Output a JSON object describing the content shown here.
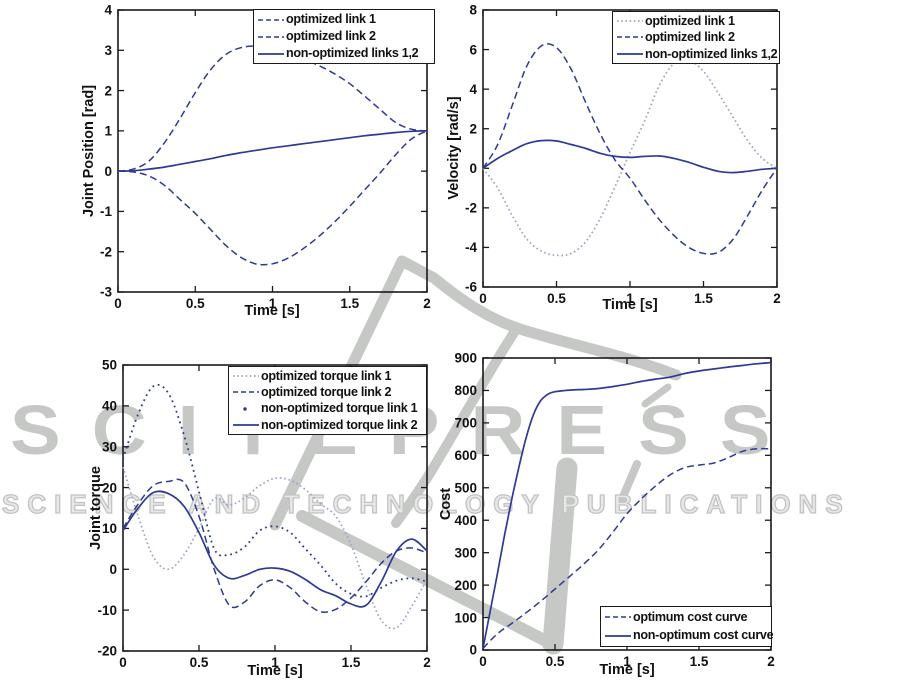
{
  "watermark": {
    "line1": "SCITEPRESS",
    "line2": "SCIENCE AND TECHNOLOGY PUBLICATIONS",
    "gray": "#c6c8c6"
  },
  "colors": {
    "curve_dark": "#2e3a94",
    "curve_light": "#99a2c9",
    "axis": "#1a1a1a",
    "text": "#111111"
  },
  "chart_data": [
    {
      "type": "line",
      "title": "",
      "xlabel": "Time [s]",
      "ylabel": "Joint Position [rad]",
      "xlim": [
        0,
        2
      ],
      "ylim": [
        -3,
        4
      ],
      "xticks": [
        0,
        0.5,
        1,
        1.5,
        2
      ],
      "yticks": [
        -3,
        -2,
        -1,
        0,
        1,
        2,
        3,
        4
      ],
      "grid": false,
      "legend_position": "top-right",
      "series": [
        {
          "name": "optimized link 1",
          "style": "dashed",
          "x": [
            0,
            0.1,
            0.2,
            0.3,
            0.4,
            0.5,
            0.6,
            0.7,
            0.8,
            0.9,
            1.0,
            1.1,
            1.2,
            1.3,
            1.4,
            1.5,
            1.6,
            1.7,
            1.8,
            1.9,
            2.0
          ],
          "y": [
            0,
            -0.02,
            -0.12,
            -0.35,
            -0.7,
            -1.05,
            -1.45,
            -1.85,
            -2.15,
            -2.31,
            -2.3,
            -2.16,
            -1.92,
            -1.62,
            -1.27,
            -0.87,
            -0.45,
            -0.03,
            0.42,
            0.8,
            1.0
          ]
        },
        {
          "name": "optimized link 2",
          "style": "dashed",
          "x": [
            0,
            0.1,
            0.2,
            0.3,
            0.4,
            0.5,
            0.6,
            0.7,
            0.8,
            0.9,
            1.0,
            1.1,
            1.2,
            1.3,
            1.4,
            1.5,
            1.6,
            1.7,
            1.8,
            1.9,
            2.0
          ],
          "y": [
            0,
            0.05,
            0.25,
            0.7,
            1.3,
            1.95,
            2.52,
            2.9,
            3.07,
            3.1,
            3.03,
            2.92,
            2.78,
            2.62,
            2.42,
            2.17,
            1.85,
            1.52,
            1.2,
            1.04,
            1.0
          ]
        },
        {
          "name": "non-optimized links 1,2",
          "style": "solid",
          "x": [
            0,
            0.1,
            0.2,
            0.3,
            0.4,
            0.5,
            0.6,
            0.7,
            0.8,
            0.9,
            1.0,
            1.1,
            1.2,
            1.3,
            1.4,
            1.5,
            1.6,
            1.7,
            1.8,
            1.9,
            2.0
          ],
          "y": [
            0,
            0.01,
            0.05,
            0.1,
            0.17,
            0.24,
            0.31,
            0.39,
            0.46,
            0.52,
            0.58,
            0.63,
            0.68,
            0.73,
            0.78,
            0.83,
            0.88,
            0.92,
            0.96,
            0.99,
            1.0
          ]
        }
      ]
    },
    {
      "type": "line",
      "title": "",
      "xlabel": "Time [s]",
      "ylabel": "Velocity [rad/s]",
      "xlim": [
        0,
        2
      ],
      "ylim": [
        -6,
        8
      ],
      "xticks": [
        0,
        0.5,
        1,
        1.5,
        2
      ],
      "yticks": [
        -6,
        -4,
        -2,
        0,
        2,
        4,
        6,
        8
      ],
      "grid": false,
      "legend_position": "top-right",
      "series": [
        {
          "name": "optimized link 1",
          "style": "dotted-light",
          "x": [
            0,
            0.1,
            0.2,
            0.3,
            0.4,
            0.5,
            0.6,
            0.7,
            0.8,
            0.9,
            1.0,
            1.1,
            1.2,
            1.3,
            1.4,
            1.5,
            1.6,
            1.7,
            1.8,
            1.9,
            2.0
          ],
          "y": [
            0,
            -1.0,
            -2.4,
            -3.6,
            -4.2,
            -4.4,
            -4.3,
            -3.7,
            -2.5,
            -0.9,
            0.8,
            2.4,
            4.2,
            5.3,
            5.45,
            4.9,
            3.8,
            2.6,
            1.4,
            0.5,
            0
          ]
        },
        {
          "name": "optimized link 2",
          "style": "dashed",
          "x": [
            0,
            0.1,
            0.2,
            0.3,
            0.4,
            0.5,
            0.6,
            0.7,
            0.8,
            0.9,
            1.0,
            1.1,
            1.2,
            1.3,
            1.4,
            1.5,
            1.6,
            1.7,
            1.8,
            1.9,
            2.0
          ],
          "y": [
            0,
            1.2,
            3.2,
            5.2,
            6.2,
            6.1,
            5.0,
            3.3,
            1.7,
            0.4,
            -0.5,
            -1.6,
            -2.6,
            -3.4,
            -4.0,
            -4.3,
            -4.25,
            -3.6,
            -2.4,
            -1.1,
            0
          ]
        },
        {
          "name": "non-optimized links 1,2",
          "style": "solid",
          "x": [
            0,
            0.1,
            0.2,
            0.3,
            0.4,
            0.5,
            0.6,
            0.7,
            0.8,
            0.9,
            1.0,
            1.1,
            1.2,
            1.3,
            1.4,
            1.5,
            1.6,
            1.7,
            1.8,
            1.9,
            2.0
          ],
          "y": [
            0,
            0.5,
            0.9,
            1.25,
            1.4,
            1.38,
            1.2,
            1.0,
            0.75,
            0.6,
            0.55,
            0.6,
            0.62,
            0.5,
            0.3,
            0.05,
            -0.15,
            -0.22,
            -0.15,
            -0.05,
            0
          ]
        }
      ]
    },
    {
      "type": "line",
      "title": "",
      "xlabel": "Time [s]",
      "ylabel": "Joint torque",
      "xlim": [
        0,
        2
      ],
      "ylim": [
        -20,
        50
      ],
      "xticks": [
        0,
        0.5,
        1,
        1.5,
        2
      ],
      "yticks": [
        -20,
        -10,
        0,
        10,
        20,
        30,
        40,
        50
      ],
      "grid": false,
      "legend_position": "top-right",
      "series": [
        {
          "name": "optimized torque link 1",
          "style": "dotted-light",
          "x": [
            0,
            0.1,
            0.2,
            0.3,
            0.4,
            0.5,
            0.6,
            0.7,
            0.8,
            0.9,
            1.0,
            1.1,
            1.2,
            1.3,
            1.4,
            1.5,
            1.6,
            1.7,
            1.8,
            1.9,
            2.0
          ],
          "y": [
            25,
            13,
            3,
            0,
            3.5,
            10,
            17.3,
            15.7,
            17.5,
            20.5,
            22.3,
            21.8,
            19.5,
            16,
            13,
            6,
            -4,
            -12.5,
            -14.3,
            -9,
            -2.5
          ]
        },
        {
          "name": "optimized torque link 2",
          "style": "dashed",
          "x": [
            0,
            0.1,
            0.2,
            0.3,
            0.4,
            0.5,
            0.6,
            0.7,
            0.8,
            0.9,
            1.0,
            1.1,
            1.2,
            1.3,
            1.4,
            1.5,
            1.6,
            1.7,
            1.8,
            1.9,
            2.0
          ],
          "y": [
            10,
            16,
            20.5,
            21.5,
            21.3,
            13,
            0,
            -8.8,
            -8,
            -4,
            -2.6,
            -4.5,
            -8,
            -10.4,
            -9.8,
            -7,
            -3,
            1.5,
            4.5,
            5.2,
            4.0
          ]
        },
        {
          "name": "non-optimized torque link 1",
          "style": "dot-marker",
          "x": [
            0,
            0.1,
            0.2,
            0.3,
            0.4,
            0.5,
            0.6,
            0.7,
            0.8,
            0.9,
            1.0,
            1.1,
            1.2,
            1.3,
            1.4,
            1.5,
            1.6,
            1.7,
            1.8,
            1.9,
            2.0
          ],
          "y": [
            27,
            38,
            44.8,
            43,
            33,
            19,
            5,
            3.6,
            5.5,
            9.5,
            10.5,
            9,
            5,
            1,
            -3.5,
            -6,
            -6.6,
            -4.5,
            -2.8,
            -2.2,
            -3.0
          ]
        },
        {
          "name": "non-optimized torque link 2",
          "style": "solid",
          "x": [
            0,
            0.1,
            0.2,
            0.3,
            0.4,
            0.5,
            0.6,
            0.7,
            0.8,
            0.9,
            1.0,
            1.1,
            1.2,
            1.3,
            1.4,
            1.5,
            1.6,
            1.7,
            1.8,
            1.9,
            2.0
          ],
          "y": [
            9.5,
            15,
            18.8,
            18.5,
            15.5,
            9,
            1,
            -2.2,
            -1.5,
            0,
            0.3,
            -0.5,
            -2.5,
            -5,
            -6.5,
            -8.5,
            -8.8,
            -3,
            4.5,
            7.4,
            4.5
          ]
        }
      ]
    },
    {
      "type": "line",
      "title": "",
      "xlabel": "Time [s]",
      "ylabel": "Cost",
      "xlim": [
        0,
        2
      ],
      "ylim": [
        0,
        900
      ],
      "xticks": [
        0,
        0.5,
        1,
        1.5,
        2
      ],
      "yticks": [
        0,
        100,
        200,
        300,
        400,
        500,
        600,
        700,
        800,
        900
      ],
      "grid": false,
      "legend_position": "bottom-right",
      "series": [
        {
          "name": "optimum cost curve",
          "style": "dashed",
          "x": [
            0,
            0.1,
            0.2,
            0.3,
            0.4,
            0.5,
            0.6,
            0.7,
            0.8,
            0.9,
            1.0,
            1.1,
            1.2,
            1.3,
            1.4,
            1.5,
            1.6,
            1.7,
            1.8,
            1.9,
            2.0
          ],
          "y": [
            5,
            50,
            82,
            115,
            150,
            188,
            226,
            265,
            308,
            362,
            420,
            466,
            506,
            540,
            562,
            570,
            576,
            592,
            612,
            620,
            620
          ]
        },
        {
          "name": "non-optimum cost curve",
          "style": "solid",
          "x": [
            0,
            0.05,
            0.1,
            0.15,
            0.2,
            0.25,
            0.3,
            0.35,
            0.4,
            0.45,
            0.5,
            0.6,
            0.7,
            0.8,
            0.9,
            1.0,
            1.1,
            1.2,
            1.3,
            1.4,
            1.5,
            1.6,
            1.7,
            1.8,
            1.9,
            2.0
          ],
          "y": [
            5,
            120,
            235,
            355,
            465,
            565,
            655,
            725,
            768,
            788,
            796,
            801,
            803,
            806,
            812,
            819,
            828,
            835,
            841,
            852,
            860,
            866,
            872,
            877,
            882,
            886
          ]
        }
      ]
    }
  ]
}
